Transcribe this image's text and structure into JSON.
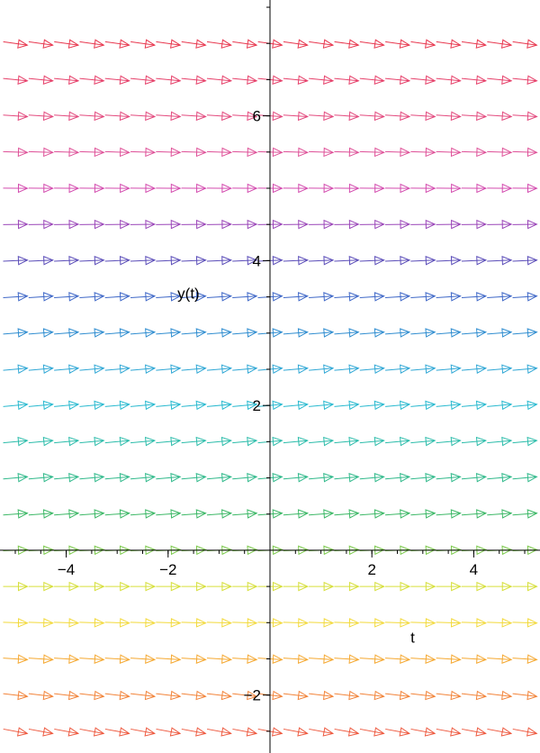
{
  "chart_data": {
    "type": "direction_field",
    "xlabel": "t",
    "ylabel": "y(t)",
    "xlim": [
      -5.3,
      5.3
    ],
    "ylim": [
      -2.8,
      7.6
    ],
    "x_ticks": [
      {
        "value": -4,
        "label": "−4"
      },
      {
        "value": -2,
        "label": "−2"
      },
      {
        "value": 2,
        "label": "2"
      },
      {
        "value": 4,
        "label": "4"
      }
    ],
    "y_ticks": [
      {
        "value": -2,
        "label": "−2"
      },
      {
        "value": 2,
        "label": "2"
      },
      {
        "value": 4,
        "label": "4"
      },
      {
        "value": 6,
        "label": "6"
      }
    ],
    "grid_t": [
      -5,
      -4.5,
      -4,
      -3.5,
      -3,
      -2.5,
      -2,
      -1.5,
      -1,
      -0.5,
      0,
      0.5,
      1,
      1.5,
      2,
      2.5,
      3,
      3.5,
      4,
      4.5,
      5
    ],
    "rows": [
      {
        "y": 7.0,
        "slope": -0.1,
        "color": "#e8384f"
      },
      {
        "y": 6.5,
        "slope": -0.07,
        "color": "#e6406a"
      },
      {
        "y": 6.0,
        "slope": -0.045,
        "color": "#e34a7e"
      },
      {
        "y": 5.5,
        "slope": -0.025,
        "color": "#de4f97"
      },
      {
        "y": 5.0,
        "slope": -0.005,
        "color": "#d34aae"
      },
      {
        "y": 4.5,
        "slope": 0.012,
        "color": "#9a45b8"
      },
      {
        "y": 4.0,
        "slope": 0.03,
        "color": "#5a4cb8"
      },
      {
        "y": 3.5,
        "slope": 0.045,
        "color": "#3e67c7"
      },
      {
        "y": 3.0,
        "slope": 0.055,
        "color": "#2f8dd0"
      },
      {
        "y": 2.5,
        "slope": 0.062,
        "color": "#2fa7d5"
      },
      {
        "y": 2.0,
        "slope": 0.066,
        "color": "#28b9cf"
      },
      {
        "y": 1.5,
        "slope": 0.066,
        "color": "#2bbcaa"
      },
      {
        "y": 1.0,
        "slope": 0.062,
        "color": "#2fb98a"
      },
      {
        "y": 0.5,
        "slope": 0.05,
        "color": "#3cb866"
      },
      {
        "y": 0.0,
        "slope": 0.03,
        "color": "#7ac94a"
      },
      {
        "y": -0.5,
        "slope": 0.0,
        "color": "#d6df3a"
      },
      {
        "y": -1.0,
        "slope": -0.02,
        "color": "#f2d93a"
      },
      {
        "y": -1.5,
        "slope": -0.045,
        "color": "#f5a830"
      },
      {
        "y": -2.0,
        "slope": -0.08,
        "color": "#f2843a"
      },
      {
        "y": -2.5,
        "slope": -0.13,
        "color": "#ee5a40"
      }
    ]
  }
}
